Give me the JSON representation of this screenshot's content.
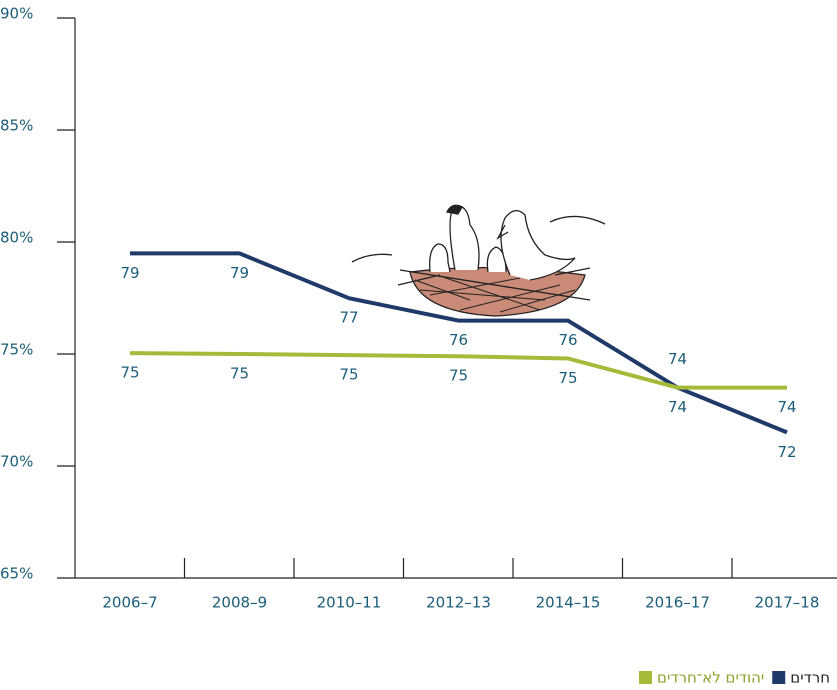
{
  "chart_data": {
    "type": "line",
    "categories": [
      "2006–7",
      "2008–9",
      "2010–11",
      "2012–13",
      "2014–15",
      "2016–17",
      "2017–18"
    ],
    "series": [
      {
        "name": "חרדים",
        "color": "#1f3a68",
        "values": [
          79.49,
          79.49,
          77.49,
          76.49,
          76.49,
          73.5,
          71.5
        ],
        "value_labels": [
          "79",
          "79",
          "77",
          "76",
          "76",
          "74",
          "72"
        ]
      },
      {
        "name": "יהודים לא־חרדים",
        "color": "#a4bb3a",
        "values": [
          75.04,
          75.0,
          74.95,
          74.9,
          74.8,
          73.5,
          73.5
        ],
        "value_labels": [
          "75",
          "75",
          "75",
          "75",
          "75",
          "74",
          "74"
        ]
      }
    ],
    "ylim": [
      65,
      90
    ],
    "yticks": [
      {
        "value": 65,
        "label": "65%"
      },
      {
        "value": 70,
        "label": "70%"
      },
      {
        "value": 75,
        "label": "75%"
      },
      {
        "value": 80,
        "label": "80%"
      },
      {
        "value": 85,
        "label": "85%"
      },
      {
        "value": 90,
        "label": "90%"
      }
    ]
  }
}
